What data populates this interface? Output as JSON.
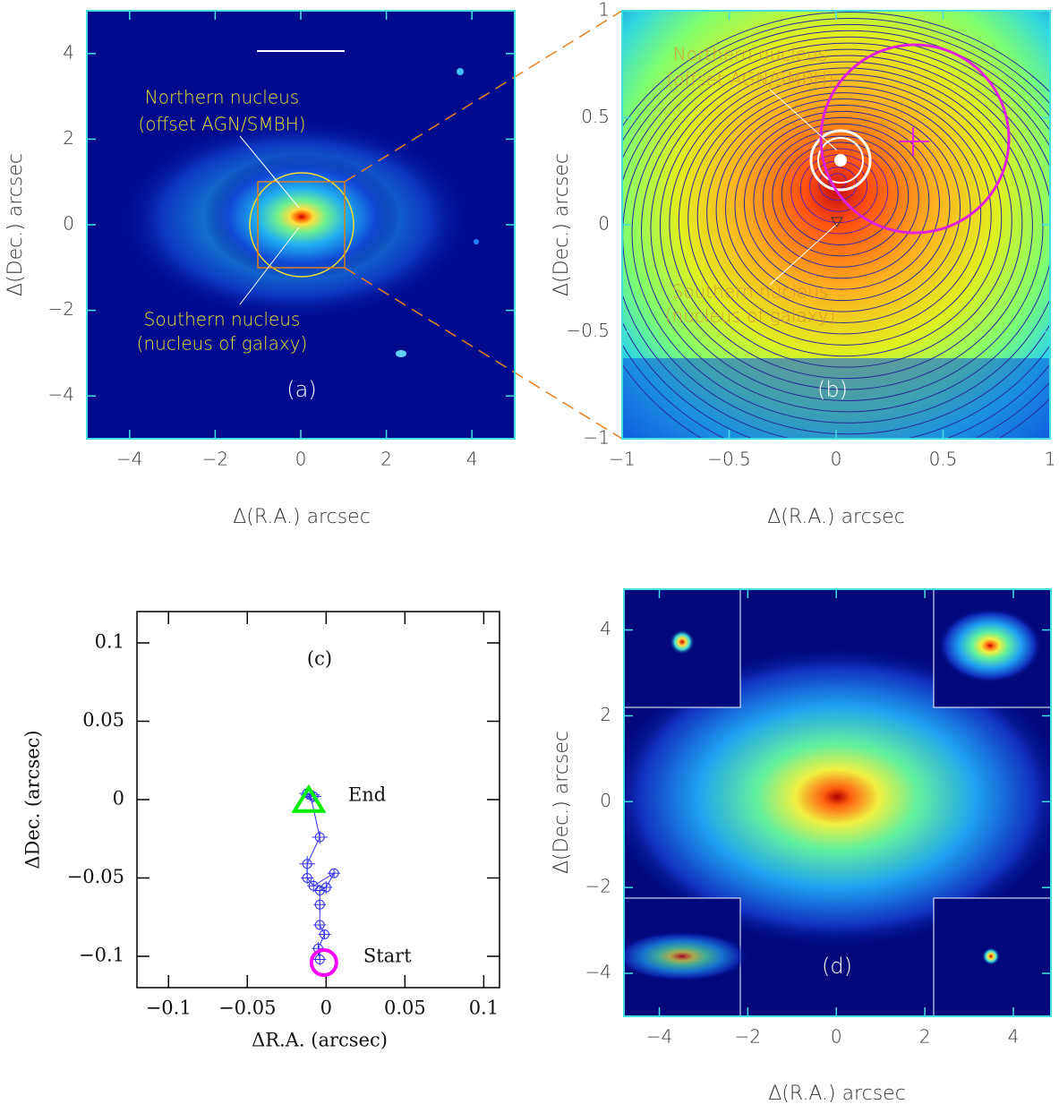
{
  "chart_data": [
    {
      "type": "image",
      "panel": "(a)",
      "xlabel": "Δ(R.A.) arcsec",
      "ylabel": "Δ(Dec.) arcsec",
      "xlim": [
        -5,
        5
      ],
      "ylim": [
        -5,
        5
      ],
      "xticks": [
        {
          "value": -4,
          "label": "−4"
        },
        {
          "value": -2,
          "label": "−2"
        },
        0,
        2,
        4
      ],
      "yticks": [
        {
          "value": -4,
          "label": "−4"
        },
        {
          "value": -2,
          "label": "−2"
        },
        0,
        2,
        4
      ],
      "annotations": [
        "Northern nucleus",
        "(offset AGN/SMBH)",
        "Southern nucleus",
        "(nucleus of galaxy)"
      ]
    },
    {
      "type": "image",
      "panel": "(b)",
      "xlabel": "Δ(R.A.) arcsec",
      "ylabel": "Δ(Dec.) arcsec",
      "xlim": [
        -1,
        1
      ],
      "ylim": [
        -1,
        1
      ],
      "xticks": [
        {
          "value": -1,
          "label": "−1"
        },
        {
          "value": -0.5,
          "label": "−0.5"
        },
        0,
        0.5,
        1
      ],
      "yticks": [
        {
          "value": -1,
          "label": "−1"
        },
        {
          "value": -0.5,
          "label": "−0.5"
        },
        0,
        0.5,
        1
      ],
      "annotations": [
        "Northern nucleus",
        "(offset AGN/SMBH)",
        "Southern nucleus",
        "(nucleus of galaxy)"
      ]
    },
    {
      "type": "scatter",
      "panel": "(c)",
      "xlabel": "ΔR.A. (arcsec)",
      "ylabel": "ΔDec. (arcsec)",
      "xlim": [
        -0.12,
        0.11
      ],
      "ylim": [
        -0.12,
        0.12
      ],
      "xticks": [
        {
          "value": -0.1,
          "label": "−0.1"
        },
        {
          "value": -0.05,
          "label": "−0.05"
        },
        0,
        0.05,
        0.1
      ],
      "yticks": [
        {
          "value": -0.1,
          "label": "−0.1"
        },
        {
          "value": -0.05,
          "label": "−0.05"
        },
        0,
        0.05,
        0.1
      ],
      "color": "#3030ff",
      "x": [
        -0.004,
        -0.005,
        -0.001,
        -0.004,
        -0.004,
        -0.004,
        0,
        0.005,
        -0.008,
        -0.012,
        -0.012,
        -0.004,
        -0.01,
        -0.008,
        -0.012
      ],
      "y": [
        -0.102,
        -0.095,
        -0.086,
        -0.08,
        -0.067,
        -0.058,
        -0.056,
        -0.047,
        -0.055,
        -0.05,
        -0.041,
        -0.024,
        0.003,
        0.002,
        0.004
      ],
      "x_err": [
        0.004,
        0.004,
        0.004,
        0.004,
        0.004,
        0.004,
        0.004,
        0.004,
        0.004,
        0.004,
        0.005,
        0.005,
        0.006,
        0.005,
        0.005
      ],
      "y_err": [
        0.004,
        0.004,
        0.003,
        0.003,
        0.004,
        0.004,
        0.004,
        0.003,
        0.004,
        0.004,
        0.005,
        0.004,
        0.004,
        0.004,
        0.004
      ],
      "markers": [
        {
          "label": "Start",
          "x": -0.0014,
          "y": -0.104,
          "color": "#ff00ff",
          "shape": "circle"
        },
        {
          "label": "End",
          "x": -0.011,
          "y": -0.001,
          "color": "#00ee00",
          "shape": "triangle"
        }
      ]
    },
    {
      "type": "image",
      "panel": "(d)",
      "xlabel": "Δ(R.A.) arcsec",
      "ylabel": "Δ(Dec.) arcsec",
      "xlim": [
        -4.8,
        4.85
      ],
      "ylim": [
        -5,
        4.95
      ],
      "xticks": [
        {
          "value": -4,
          "label": "−4"
        },
        {
          "value": -2,
          "label": "−2"
        },
        0,
        2,
        4
      ],
      "yticks": [
        {
          "value": -4,
          "label": "−4"
        },
        {
          "value": -2,
          "label": "−2"
        },
        0,
        2,
        4
      ]
    }
  ]
}
